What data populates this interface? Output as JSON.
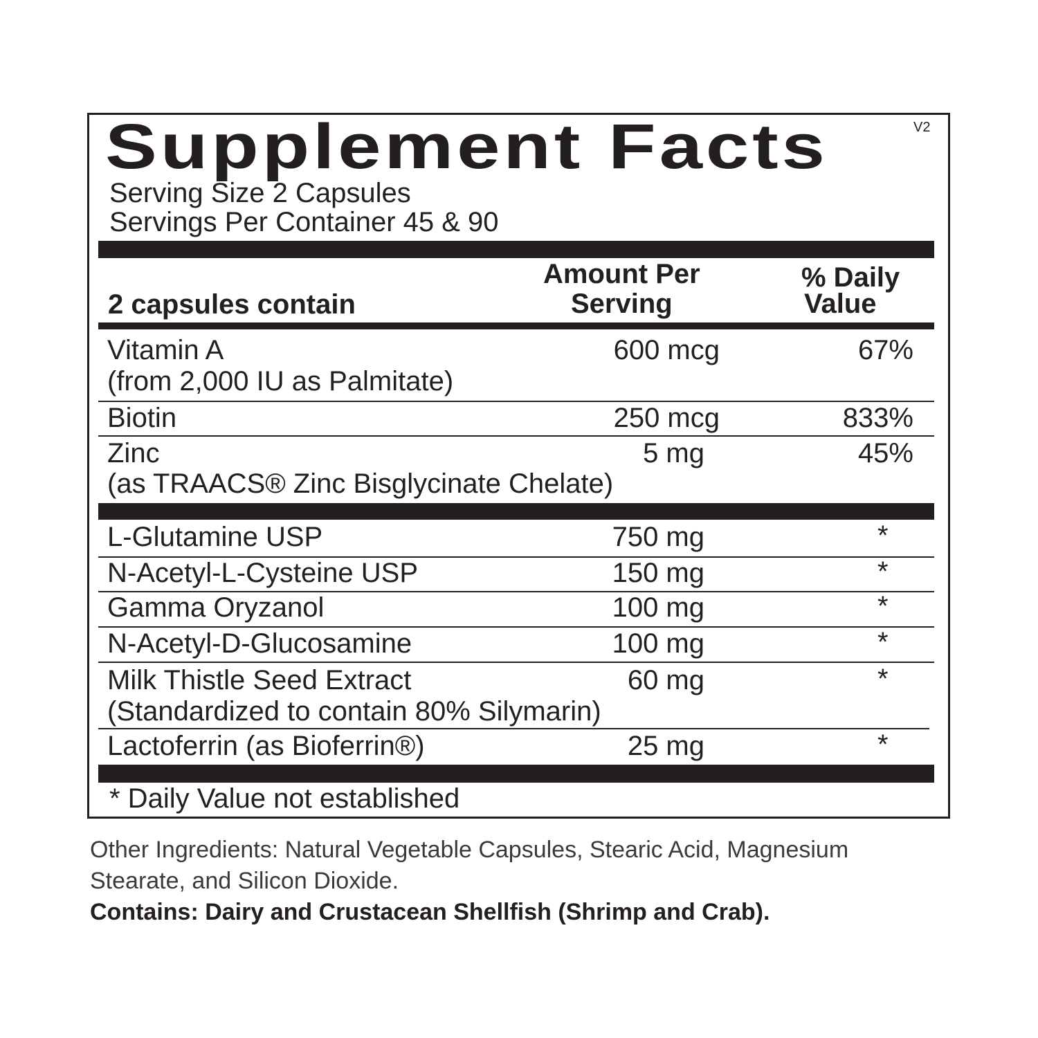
{
  "title": "Supplement Facts",
  "version": "V2",
  "serving_size": "Serving Size 2 Capsules",
  "servings_per_container": "Servings Per Container 45 & 90",
  "header": {
    "contain": "2 capsules contain",
    "amount_1": "Amount Per",
    "amount_2": "Serving",
    "dv_1": "% Daily",
    "dv_2": "Value"
  },
  "rows": [
    {
      "name": "Vitamin A",
      "sub": "(from 2,000 IU as Palmitate)",
      "amount": "600 mcg",
      "dv": "67%"
    },
    {
      "name": "Biotin",
      "sub": "",
      "amount": "250 mcg",
      "dv": "833%"
    },
    {
      "name": "Zinc",
      "sub": "(as TRAACS® Zinc Bisglycinate Chelate)",
      "amount": "5 mg",
      "dv": "45%"
    },
    {
      "name": "L-Glutamine USP",
      "sub": "",
      "amount": "750 mg",
      "dv": "*"
    },
    {
      "name": "N-Acetyl-L-Cysteine USP",
      "sub": "",
      "amount": "150 mg",
      "dv": "*"
    },
    {
      "name": "Gamma Oryzanol",
      "sub": "",
      "amount": "100 mg",
      "dv": "*"
    },
    {
      "name": "N-Acetyl-D-Glucosamine",
      "sub": "",
      "amount": "100 mg",
      "dv": "*"
    },
    {
      "name": "Milk Thistle Seed Extract",
      "sub": "(Standardized to contain 80% Silymarin)",
      "amount": "60 mg",
      "dv": "*"
    },
    {
      "name": "Lactoferrin (as Bioferrin®)",
      "sub": "",
      "amount": "25 mg",
      "dv": "*"
    }
  ],
  "footnote": "* Daily Value not established",
  "other_1": "Other Ingredients: Natural Vegetable Capsules, Stearic Acid, Magnesium",
  "other_2": "Stearate, and Silicon Dioxide.",
  "contains": "Contains: Dairy and Crustacean Shellfish (Shrimp and Crab)."
}
